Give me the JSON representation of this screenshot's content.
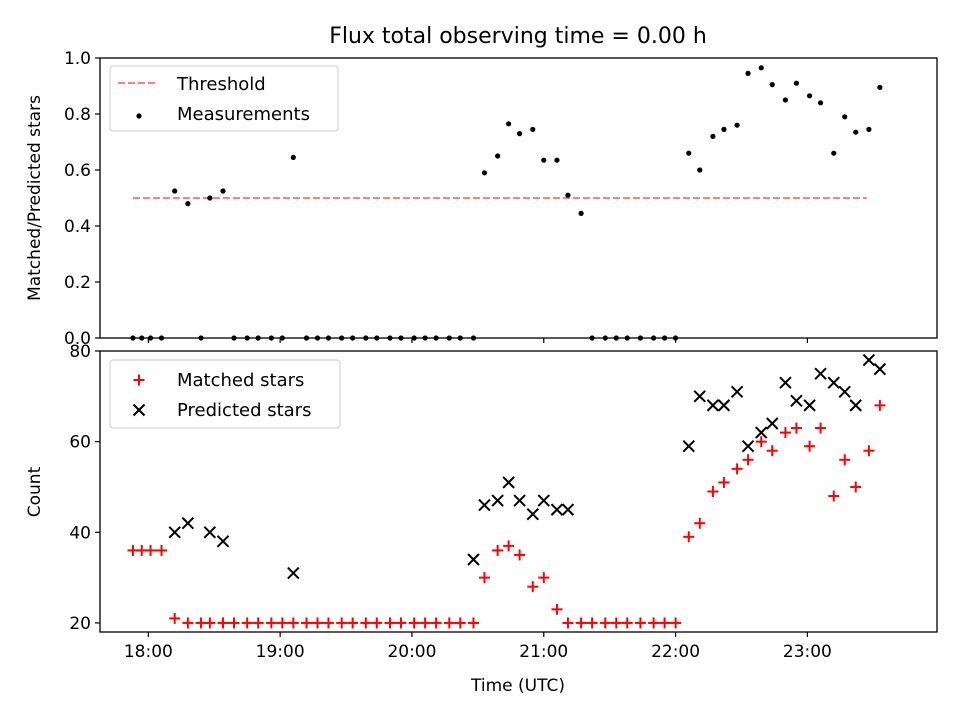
{
  "title": "Flux total observing time = 0.00 h",
  "colors": {
    "threshold": "#ff7f7f",
    "measurements": "#000000",
    "matched": "#ff0000",
    "predicted": "#000000"
  },
  "chart_data": [
    {
      "type": "scatter",
      "panel": "top",
      "xlabel": "",
      "ylabel": "Matched/Predicted stars",
      "ylim": [
        0,
        1.0
      ],
      "yticks": [
        "0.0",
        "0.2",
        "0.4",
        "0.6",
        "0.8",
        "1.0"
      ],
      "xlim": [
        "17:38",
        "23:59"
      ],
      "grid": false,
      "legend_position": "upper-left",
      "legend": [
        "Threshold",
        "Measurements"
      ],
      "series": [
        {
          "name": "Threshold",
          "kind": "dashed-line",
          "x": [
            "17:53",
            "23:27"
          ],
          "y": [
            0.5,
            0.5
          ]
        },
        {
          "name": "Measurements",
          "kind": "dots",
          "x": [
            "17:53",
            "17:57",
            "18:01",
            "18:06",
            "18:12",
            "18:18",
            "18:24",
            "18:28",
            "18:34",
            "18:39",
            "18:45",
            "18:50",
            "18:56",
            "19:01",
            "19:06",
            "19:12",
            "19:17",
            "19:22",
            "19:28",
            "19:33",
            "19:39",
            "19:44",
            "19:50",
            "19:55",
            "20:01",
            "20:06",
            "20:11",
            "20:17",
            "20:22",
            "20:28",
            "20:33",
            "20:39",
            "20:44",
            "20:49",
            "20:55",
            "21:00",
            "21:06",
            "21:11",
            "21:17",
            "21:22",
            "21:28",
            "21:33",
            "21:38",
            "21:44",
            "21:50",
            "21:55",
            "22:00",
            "22:06",
            "22:11",
            "22:17",
            "22:22",
            "22:28",
            "22:33",
            "22:39",
            "22:44",
            "22:50",
            "22:55",
            "23:01",
            "23:06",
            "23:12",
            "23:17",
            "23:22",
            "23:28",
            "23:33"
          ],
          "y": [
            0,
            0,
            0,
            0,
            0.525,
            0.48,
            0,
            0.5,
            0.525,
            0,
            0,
            0,
            0,
            0,
            0.645,
            0,
            0,
            0,
            0,
            0,
            0,
            0,
            0,
            0,
            0,
            0,
            0,
            0,
            0,
            0,
            0.59,
            0.65,
            0.765,
            0.73,
            0.745,
            0.635,
            0.635,
            0.51,
            0.445,
            0,
            0,
            0,
            0,
            0,
            0,
            0,
            0,
            0.66,
            0.6,
            0.72,
            0.745,
            0.76,
            0.945,
            0.965,
            0.905,
            0.85,
            0.91,
            0.865,
            0.84,
            0.66,
            0.79,
            0.735,
            0.745,
            0.895
          ]
        }
      ]
    },
    {
      "type": "scatter",
      "panel": "bottom",
      "xlabel": "Time (UTC)",
      "ylabel": "Count",
      "ylim": [
        18,
        80
      ],
      "yticks": [
        "20",
        "40",
        "60",
        "80"
      ],
      "xticks": [
        "18:00",
        "19:00",
        "20:00",
        "21:00",
        "22:00",
        "23:00"
      ],
      "xlim": [
        "17:38",
        "23:59"
      ],
      "grid": false,
      "legend_position": "upper-left",
      "legend": [
        "Matched stars",
        "Predicted stars"
      ],
      "series": [
        {
          "name": "Matched stars",
          "marker": "+",
          "x": [
            "17:53",
            "17:57",
            "18:01",
            "18:06",
            "18:12",
            "18:18",
            "18:24",
            "18:28",
            "18:34",
            "18:39",
            "18:45",
            "18:50",
            "18:56",
            "19:01",
            "19:06",
            "19:12",
            "19:17",
            "19:22",
            "19:28",
            "19:33",
            "19:39",
            "19:44",
            "19:50",
            "19:55",
            "20:01",
            "20:06",
            "20:11",
            "20:17",
            "20:22",
            "20:28",
            "20:33",
            "20:39",
            "20:44",
            "20:49",
            "20:55",
            "21:00",
            "21:06",
            "21:11",
            "21:17",
            "21:22",
            "21:28",
            "21:33",
            "21:38",
            "21:44",
            "21:50",
            "21:55",
            "22:00",
            "22:06",
            "22:11",
            "22:17",
            "22:22",
            "22:28",
            "22:33",
            "22:39",
            "22:44",
            "22:50",
            "22:55",
            "23:01",
            "23:06",
            "23:12",
            "23:17",
            "23:22",
            "23:28",
            "23:33"
          ],
          "y": [
            36,
            36,
            36,
            36,
            21,
            20,
            20,
            20,
            20,
            20,
            20,
            20,
            20,
            20,
            20,
            20,
            20,
            20,
            20,
            20,
            20,
            20,
            20,
            20,
            20,
            20,
            20,
            20,
            20,
            20,
            30,
            36,
            37,
            35,
            28,
            30,
            23,
            20,
            20,
            20,
            20,
            20,
            20,
            20,
            20,
            20,
            20,
            39,
            42,
            49,
            51,
            54,
            56,
            60,
            58,
            62,
            63,
            59,
            63,
            48,
            56,
            50,
            58,
            68
          ]
        },
        {
          "name": "Predicted stars",
          "marker": "x",
          "x": [
            "18:12",
            "18:18",
            "18:28",
            "18:34",
            "19:06",
            "20:28",
            "20:33",
            "20:39",
            "20:44",
            "20:49",
            "20:55",
            "21:00",
            "21:06",
            "21:11",
            "22:06",
            "22:11",
            "22:17",
            "22:22",
            "22:28",
            "22:33",
            "22:39",
            "22:44",
            "22:50",
            "22:55",
            "23:01",
            "23:06",
            "23:12",
            "23:17",
            "23:22",
            "23:28",
            "23:33"
          ],
          "y": [
            40,
            42,
            40,
            38,
            31,
            34,
            46,
            47,
            51,
            47,
            44,
            47,
            45,
            45,
            59,
            70,
            68,
            68,
            71,
            59,
            62,
            64,
            73,
            69,
            68,
            75,
            73,
            71,
            68,
            78,
            76
          ]
        }
      ]
    }
  ]
}
